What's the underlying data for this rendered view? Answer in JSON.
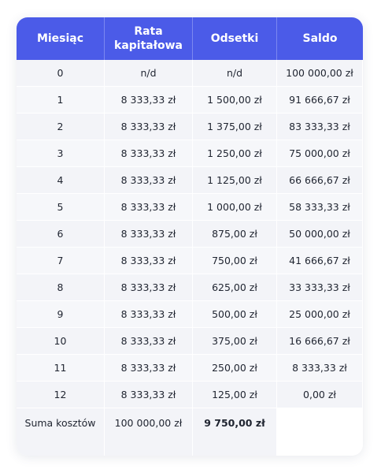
{
  "headers": [
    "Miesiąc",
    "Rata kapitałowa",
    "Odsetki",
    "Saldo"
  ],
  "rows": [
    [
      "0",
      "n/d",
      "n/d",
      "100 000,00 zł"
    ],
    [
      "1",
      "8 333,33 zł",
      "1 500,00 zł",
      "91 666,67 zł"
    ],
    [
      "2",
      "8 333,33 zł",
      "1 375,00 zł",
      "83 333,33 zł"
    ],
    [
      "3",
      "8 333,33 zł",
      "1 250,00 zł",
      "75 000,00 zł"
    ],
    [
      "4",
      "8 333,33 zł",
      "1 125,00 zł",
      "66 666,67 zł"
    ],
    [
      "5",
      "8 333,33 zł",
      "1 000,00 zł",
      "58 333,33 zł"
    ],
    [
      "6",
      "8 333,33 zł",
      "875,00 zł",
      "50 000,00 zł"
    ],
    [
      "7",
      "8 333,33 zł",
      "750,00 zł",
      "41 666,67 zł"
    ],
    [
      "8",
      "8 333,33 zł",
      "625,00 zł",
      "33 333,33 zł"
    ],
    [
      "9",
      "8 333,33 zł",
      "500,00 zł",
      "25 000,00 zł"
    ],
    [
      "10",
      "8 333,33 zł",
      "375,00 zł",
      "16 666,67 zł"
    ],
    [
      "11",
      "8 333,33 zł",
      "250,00 zł",
      "8 333,33 zł"
    ],
    [
      "12",
      "8 333,33 zł",
      "125,00 zł",
      "0,00 zł"
    ]
  ],
  "summary": {
    "label": "Suma kosztów",
    "principal_total": "100 000,00 zł",
    "interest_total": "9 750,00 zł",
    "balance": ""
  }
}
